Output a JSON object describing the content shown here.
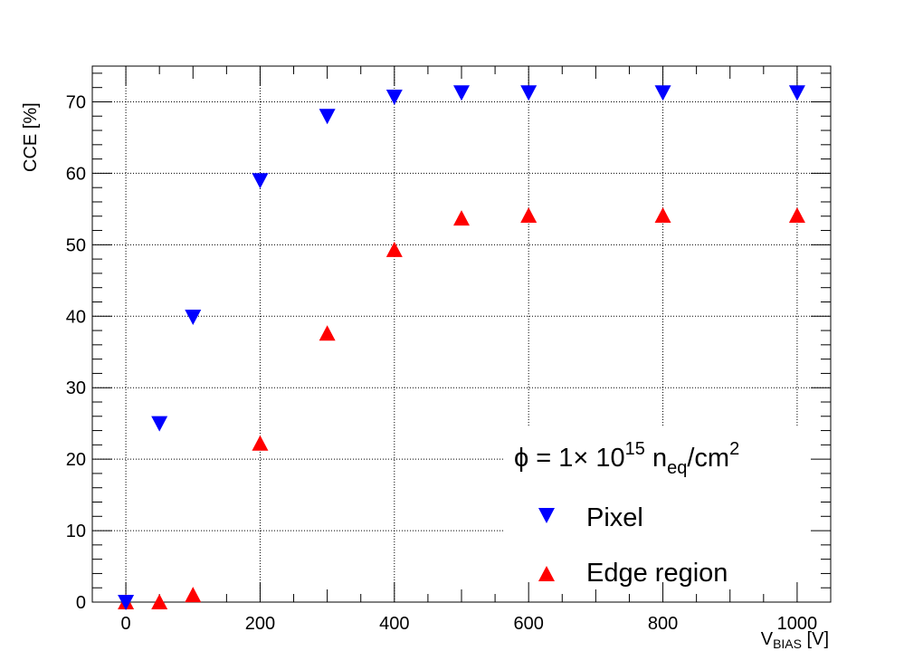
{
  "chart_data": {
    "type": "scatter",
    "title": "",
    "xlabel": "V",
    "xlabel_sub": "BIAS",
    "xlabel_unit": " [V]",
    "ylabel": "CCE [%]",
    "xlim": [
      -50,
      1050
    ],
    "ylim": [
      0,
      75
    ],
    "xticks": [
      0,
      200,
      400,
      600,
      800,
      1000
    ],
    "xtick_labels": [
      "0",
      "200",
      "400",
      "600",
      "800",
      "1000"
    ],
    "yticks": [
      0,
      10,
      20,
      30,
      40,
      50,
      60,
      70
    ],
    "ytick_labels": [
      "0",
      "10",
      "20",
      "30",
      "40",
      "50",
      "60",
      "70"
    ],
    "grid": true,
    "legend_placement": "bottom-right",
    "legend_header": {
      "symbol": "ϕ = 1× 10",
      "exp": "15",
      "mid": " n",
      "sub": "eq",
      "tail": "/cm",
      "exp2": "2"
    },
    "series": [
      {
        "name": "Pixel",
        "marker": "triangle-down",
        "color": "#0000ff",
        "x": [
          0,
          50,
          100,
          200,
          300,
          400,
          500,
          600,
          800,
          1000
        ],
        "y": [
          0,
          25,
          39.9,
          59,
          68,
          70.7,
          71.3,
          71.3,
          71.3,
          71.3
        ]
      },
      {
        "name": "Edge region",
        "marker": "triangle-up",
        "color": "#ff0000",
        "x": [
          0,
          50,
          100,
          200,
          300,
          400,
          500,
          600,
          800,
          1000
        ],
        "y": [
          0,
          0,
          1,
          22.2,
          37.6,
          49.3,
          53.7,
          54.1,
          54.1,
          54.1
        ]
      }
    ]
  }
}
